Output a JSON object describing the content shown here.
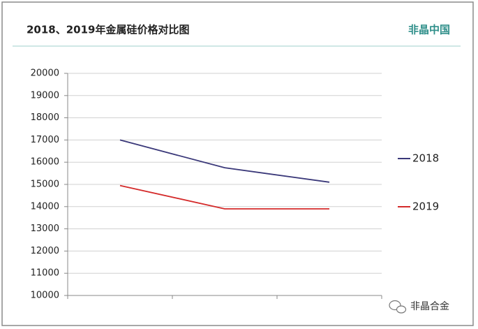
{
  "chart_data": {
    "type": "line",
    "title": "2018、2019年金属硅价格对比图",
    "brand": "非晶中国",
    "watermark": "非晶合金",
    "categories": [
      null,
      null,
      null
    ],
    "series": [
      {
        "name": "2018",
        "color": "#3a3879",
        "values": [
          17000,
          15750,
          15100
        ]
      },
      {
        "name": "2019",
        "color": "#d42a2a",
        "values": [
          14950,
          13900,
          13900
        ]
      }
    ],
    "ylim": [
      10000,
      20000
    ],
    "yticks": [
      10000,
      11000,
      12000,
      13000,
      14000,
      15000,
      16000,
      17000,
      18000,
      19000,
      20000
    ],
    "grid": true,
    "legend": "right"
  }
}
